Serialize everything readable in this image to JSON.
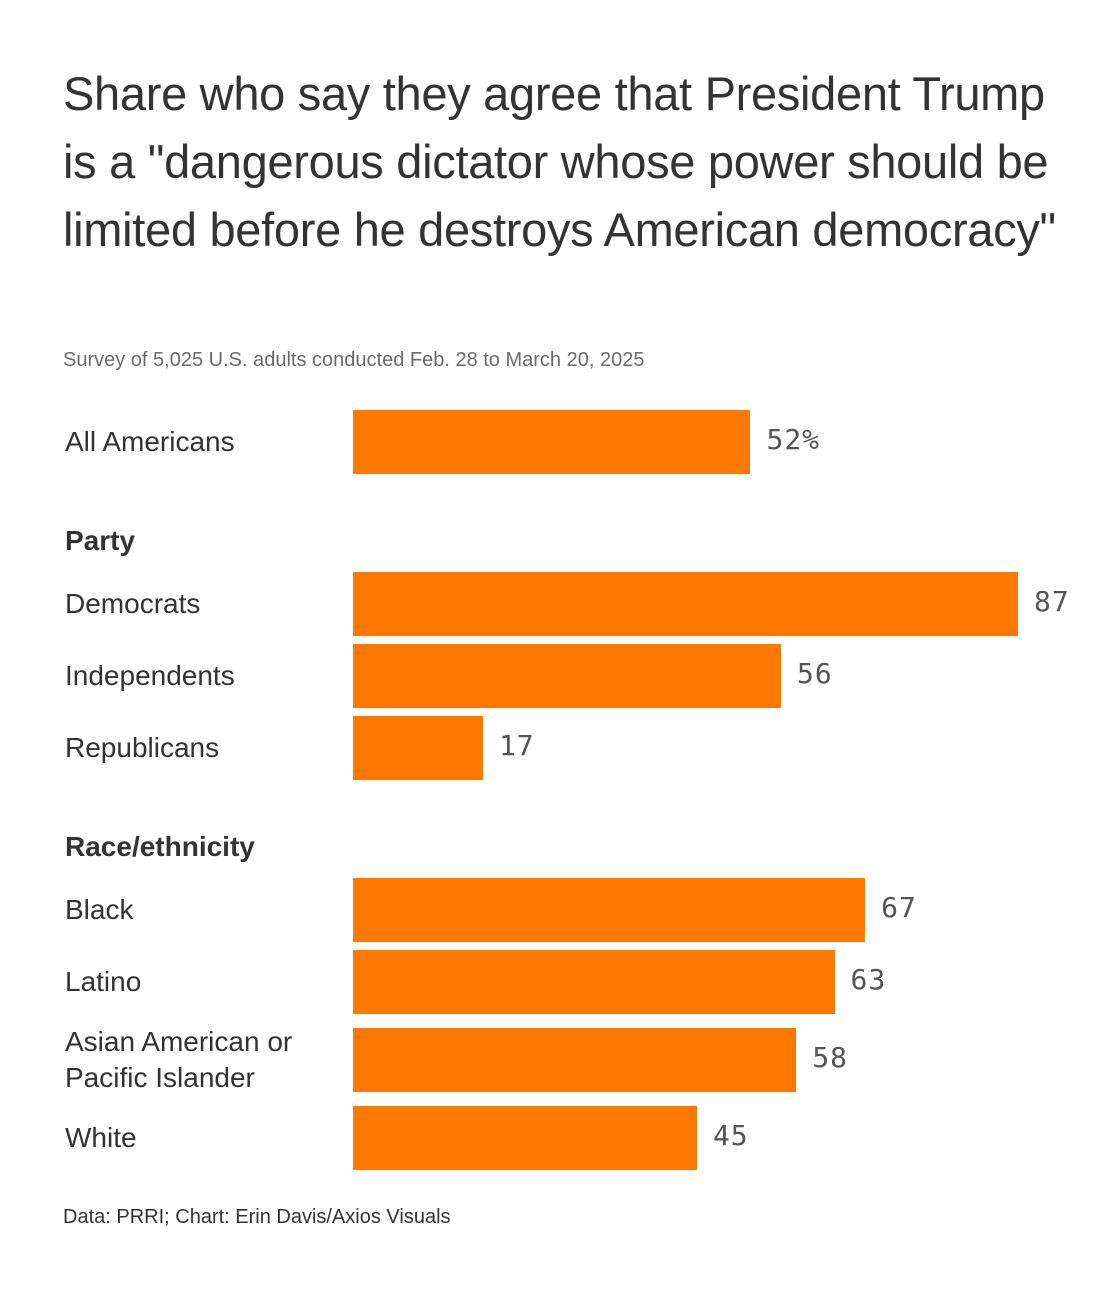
{
  "chart_data": {
    "type": "bar",
    "orientation": "horizontal",
    "title": "Share who say they agree that President Trump is a \"dangerous dictator whose power should be limited before he destroys American democracy\"",
    "subtitle": "Survey of 5,025 U.S. adults conducted Feb. 28 to March 20, 2025",
    "footer": "Data: PRRI; Chart: Erin Davis/Axios Visuals",
    "unit_suffix": "%",
    "bar_color": "#ff7900",
    "xlim": [
      0,
      100
    ],
    "grid": false,
    "groups": [
      {
        "name": "",
        "items": [
          {
            "label": "All Americans",
            "value": 52,
            "display": "52%"
          }
        ]
      },
      {
        "name": "Party",
        "items": [
          {
            "label": "Democrats",
            "value": 87,
            "display": "87"
          },
          {
            "label": "Independents",
            "value": 56,
            "display": "56"
          },
          {
            "label": "Republicans",
            "value": 17,
            "display": "17"
          }
        ]
      },
      {
        "name": "Race/ethnicity",
        "items": [
          {
            "label": "Black",
            "value": 67,
            "display": "67"
          },
          {
            "label": "Latino",
            "value": 63,
            "display": "63"
          },
          {
            "label": "Asian American or Pacific Islander",
            "value": 58,
            "display": "58"
          },
          {
            "label": "White",
            "value": 45,
            "display": "45"
          }
        ]
      }
    ]
  }
}
